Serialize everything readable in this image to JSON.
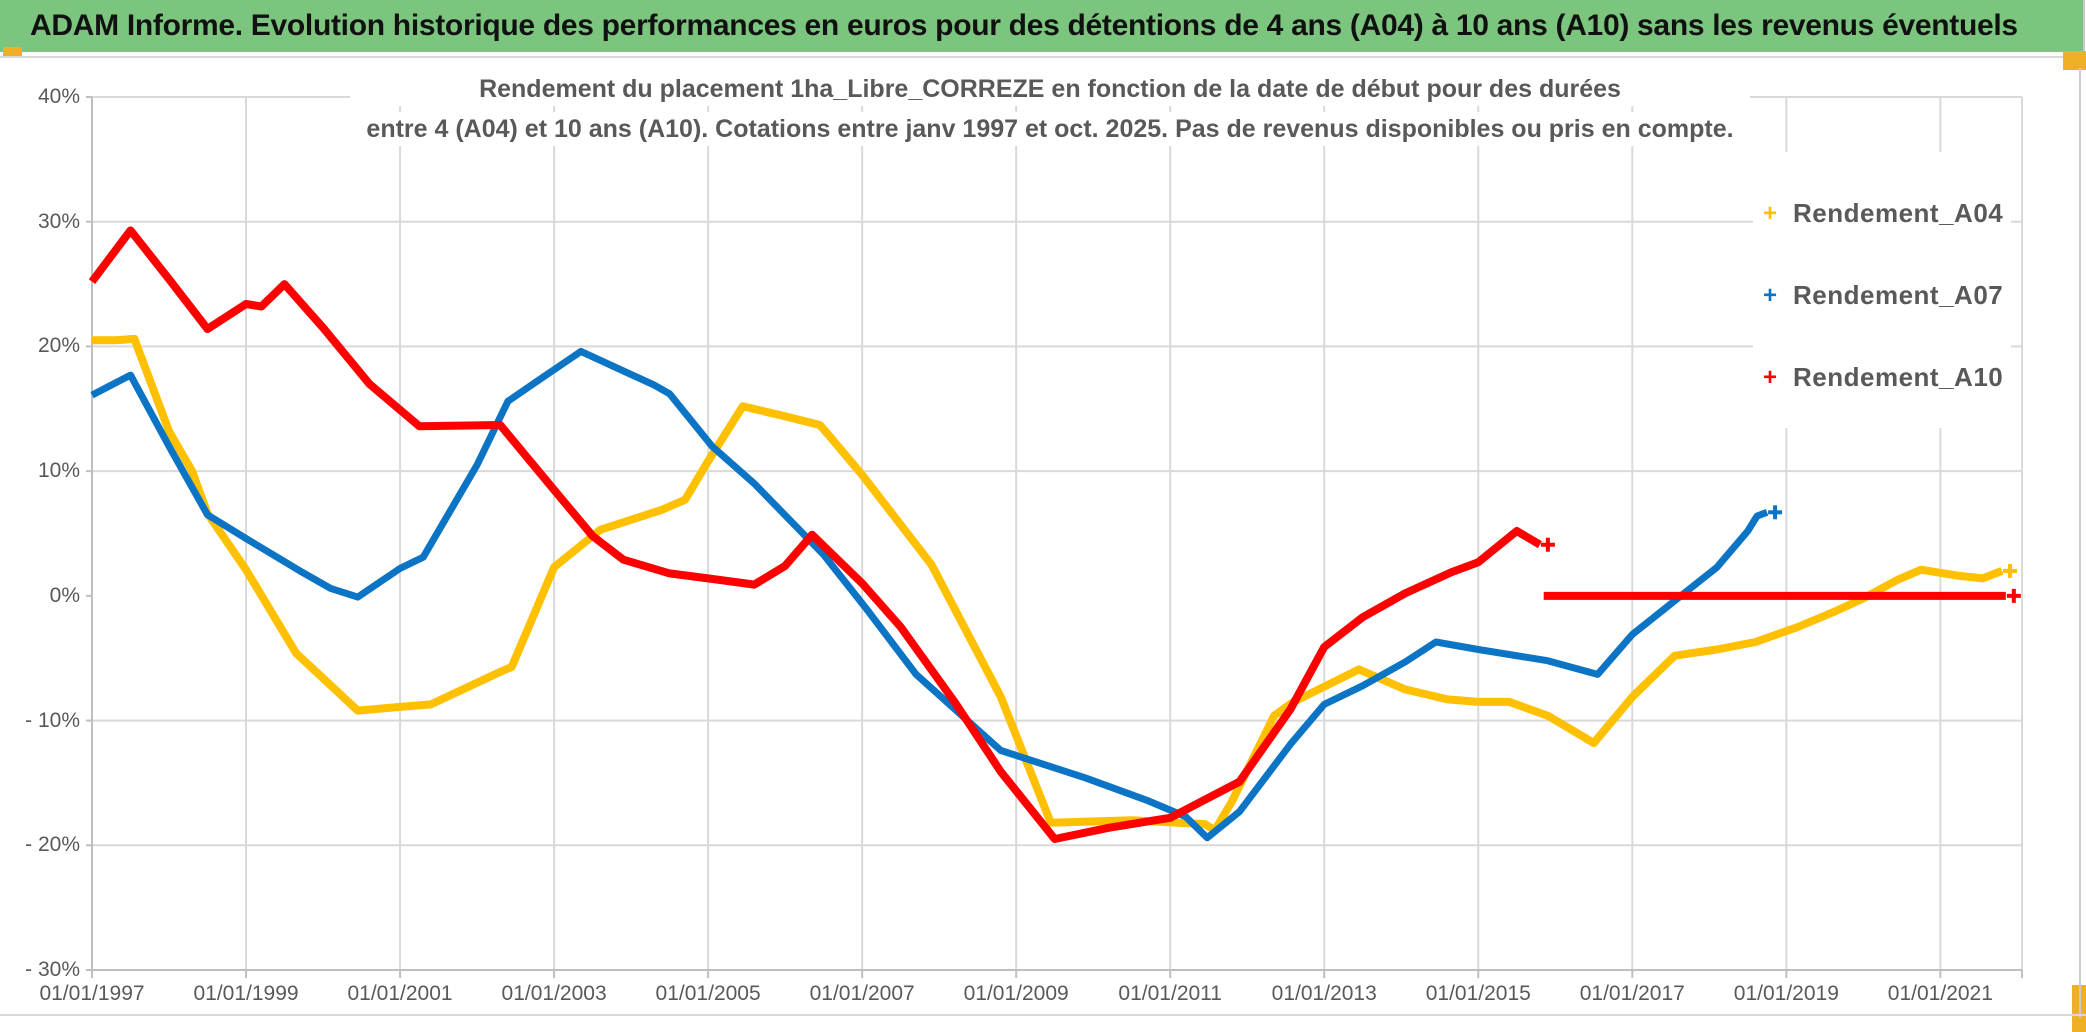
{
  "header": {
    "title": "ADAM Informe. Evolution historique des performances en euros pour des détentions de 4 ans (A04) à 10 ans (A10) sans les revenus éventuels"
  },
  "colors": {
    "header_green": "#7cc57e",
    "accent_orange": "#f0b025",
    "grid": "#d9d9d9",
    "axis": "#bfbfbf",
    "text_gray": "#595959",
    "series_a04": "#ffc000",
    "series_a07": "#0b74c4",
    "series_a10": "#fe0000"
  },
  "chart_data": {
    "type": "line",
    "title_lines": [
      "Rendement du placement 1ha_Libre_CORREZE en fonction de la date de début pour des durées",
      "entre 4 (A04) et 10 ans (A10). Cotations entre janv 1997 et oct. 2025. Pas de revenus disponibles ou pris en compte."
    ],
    "xlim": [
      1997,
      2022.06
    ],
    "ylim": [
      -30,
      40
    ],
    "grid": {
      "h_values": [
        40,
        30,
        20,
        10,
        -10,
        -20
      ],
      "v_years": [
        1999,
        2001,
        2003,
        2005,
        2007,
        2009,
        2011,
        2013,
        2015,
        2017,
        2019,
        2021
      ],
      "zero_gridline": false
    },
    "y_ticks": [
      {
        "value": 40,
        "label": "40%"
      },
      {
        "value": 30,
        "label": "30%"
      },
      {
        "value": 20,
        "label": "20%"
      },
      {
        "value": 10,
        "label": "10%"
      },
      {
        "value": 0,
        "label": "0%"
      },
      {
        "value": -10,
        "label": "- 10%"
      },
      {
        "value": -20,
        "label": "- 20%"
      },
      {
        "value": -30,
        "label": "- 30%"
      }
    ],
    "x_ticks": [
      {
        "year": 1997,
        "label": "01/01/1997"
      },
      {
        "year": 1999,
        "label": "01/01/1999"
      },
      {
        "year": 2001,
        "label": "01/01/2001"
      },
      {
        "year": 2003,
        "label": "01/01/2003"
      },
      {
        "year": 2005,
        "label": "01/01/2005"
      },
      {
        "year": 2007,
        "label": "01/01/2007"
      },
      {
        "year": 2009,
        "label": "01/01/2009"
      },
      {
        "year": 2011,
        "label": "01/01/2011"
      },
      {
        "year": 2013,
        "label": "01/01/2013"
      },
      {
        "year": 2015,
        "label": "01/01/2015"
      },
      {
        "year": 2017,
        "label": "01/01/2017"
      },
      {
        "year": 2019,
        "label": "01/01/2019"
      },
      {
        "year": 2021,
        "label": "01/01/2021"
      }
    ],
    "legend": [
      {
        "label": "Rendement_A04",
        "marker": "+",
        "color": "#ffc000"
      },
      {
        "label": "Rendement_A07",
        "marker": "+",
        "color": "#0b74c4"
      },
      {
        "label": "Rendement_A10",
        "marker": "+",
        "color": "#fe0000"
      }
    ],
    "legend_position": "right",
    "series": [
      {
        "name": "Rendement_A04",
        "color": "#ffc000",
        "width": 8,
        "segments": [
          [
            [
              1997.0,
              20.5
            ],
            [
              1997.3,
              20.5
            ],
            [
              1997.55,
              20.6
            ],
            [
              1998.0,
              13.2
            ],
            [
              1998.3,
              10.0
            ],
            [
              1998.5,
              6.6
            ],
            [
              1999.0,
              2.1
            ],
            [
              1999.65,
              -4.6
            ],
            [
              2000.0,
              -6.6
            ],
            [
              2000.45,
              -9.2
            ],
            [
              2001.0,
              -8.9
            ],
            [
              2001.4,
              -8.7
            ],
            [
              2002.3,
              -6.1
            ],
            [
              2002.45,
              -5.7
            ],
            [
              2003.0,
              2.3
            ],
            [
              2003.6,
              5.3
            ],
            [
              2004.4,
              6.9
            ],
            [
              2004.7,
              7.7
            ],
            [
              2005.0,
              10.8
            ],
            [
              2005.45,
              15.2
            ],
            [
              2006.0,
              14.4
            ],
            [
              2006.45,
              13.7
            ],
            [
              2006.55,
              13.0
            ],
            [
              2007.0,
              9.7
            ],
            [
              2007.9,
              2.5
            ],
            [
              2008.8,
              -8.1
            ],
            [
              2009.45,
              -18.2
            ],
            [
              2010.5,
              -18.0
            ],
            [
              2011.45,
              -18.3
            ],
            [
              2011.58,
              -18.8
            ],
            [
              2011.8,
              -16.5
            ],
            [
              2012.35,
              -9.6
            ],
            [
              2012.6,
              -8.5
            ],
            [
              2013.45,
              -5.9
            ],
            [
              2014.05,
              -7.5
            ],
            [
              2014.6,
              -8.3
            ],
            [
              2015.0,
              -8.5
            ],
            [
              2015.4,
              -8.5
            ],
            [
              2015.9,
              -9.6
            ],
            [
              2016.5,
              -11.8
            ],
            [
              2017.0,
              -8.1
            ],
            [
              2017.55,
              -4.8
            ],
            [
              2018.1,
              -4.3
            ],
            [
              2018.6,
              -3.7
            ],
            [
              2019.15,
              -2.5
            ],
            [
              2019.65,
              -1.2
            ],
            [
              2020.0,
              -0.2
            ],
            [
              2020.45,
              1.3
            ],
            [
              2020.75,
              2.1
            ],
            [
              2021.25,
              1.6
            ],
            [
              2021.55,
              1.4
            ],
            [
              2021.8,
              2.0
            ]
          ]
        ]
      },
      {
        "name": "Rendement_A07",
        "color": "#0b74c4",
        "width": 7,
        "segments": [
          [
            [
              1997.0,
              16.1
            ],
            [
              1997.5,
              17.7
            ],
            [
              1998.0,
              12.0
            ],
            [
              1998.5,
              6.5
            ],
            [
              1999.0,
              4.6
            ],
            [
              1999.7,
              2.0
            ],
            [
              2000.1,
              0.6
            ],
            [
              2000.45,
              -0.1
            ],
            [
              2001.0,
              2.2
            ],
            [
              2001.3,
              3.1
            ],
            [
              2002.0,
              10.5
            ],
            [
              2002.4,
              15.6
            ],
            [
              2002.8,
              17.3
            ],
            [
              2003.35,
              19.6
            ],
            [
              2004.3,
              16.9
            ],
            [
              2004.5,
              16.2
            ],
            [
              2005.05,
              12.0
            ],
            [
              2005.6,
              9.0
            ],
            [
              2006.5,
              3.3
            ],
            [
              2007.05,
              -1.0
            ],
            [
              2007.7,
              -6.3
            ],
            [
              2008.8,
              -12.4
            ],
            [
              2009.9,
              -14.6
            ],
            [
              2010.7,
              -16.4
            ],
            [
              2011.2,
              -17.7
            ],
            [
              2011.48,
              -19.4
            ],
            [
              2011.9,
              -17.3
            ],
            [
              2012.56,
              -11.9
            ],
            [
              2013.0,
              -8.7
            ],
            [
              2013.5,
              -7.2
            ],
            [
              2014.05,
              -5.3
            ],
            [
              2014.45,
              -3.7
            ],
            [
              2015.0,
              -4.3
            ],
            [
              2015.9,
              -5.2
            ],
            [
              2016.55,
              -6.3
            ],
            [
              2017.0,
              -3.1
            ],
            [
              2017.55,
              -0.4
            ],
            [
              2018.1,
              2.3
            ],
            [
              2018.5,
              5.2
            ],
            [
              2018.62,
              6.4
            ],
            [
              2018.75,
              6.7
            ]
          ]
        ]
      },
      {
        "name": "Rendement_A10",
        "color": "#fe0000",
        "width": 8,
        "segments": [
          [
            [
              1997.0,
              25.2
            ],
            [
              1997.5,
              29.3
            ],
            [
              1998.0,
              25.4
            ],
            [
              1998.5,
              21.4
            ],
            [
              1999.0,
              23.4
            ],
            [
              1999.2,
              23.2
            ],
            [
              1999.5,
              25.0
            ],
            [
              2000.0,
              21.5
            ],
            [
              2000.6,
              17.0
            ],
            [
              2001.25,
              13.6
            ],
            [
              2002.3,
              13.7
            ],
            [
              2003.0,
              8.5
            ],
            [
              2003.5,
              4.8
            ],
            [
              2003.9,
              2.9
            ],
            [
              2004.5,
              1.8
            ],
            [
              2005.0,
              1.4
            ],
            [
              2005.6,
              0.9
            ],
            [
              2006.0,
              2.4
            ],
            [
              2006.35,
              4.9
            ],
            [
              2007.0,
              1.0
            ],
            [
              2007.5,
              -2.5
            ],
            [
              2008.2,
              -8.5
            ],
            [
              2008.8,
              -14.1
            ],
            [
              2009.5,
              -19.5
            ],
            [
              2010.2,
              -18.6
            ],
            [
              2011.0,
              -17.8
            ],
            [
              2011.9,
              -14.9
            ],
            [
              2012.56,
              -9.1
            ],
            [
              2013.0,
              -4.1
            ],
            [
              2013.5,
              -1.7
            ],
            [
              2014.05,
              0.2
            ],
            [
              2014.65,
              1.9
            ],
            [
              2015.0,
              2.7
            ],
            [
              2015.5,
              5.2
            ],
            [
              2015.8,
              4.1
            ]
          ],
          [
            [
              2015.85,
              0.0
            ],
            [
              2021.85,
              0.0
            ]
          ]
        ]
      }
    ]
  }
}
